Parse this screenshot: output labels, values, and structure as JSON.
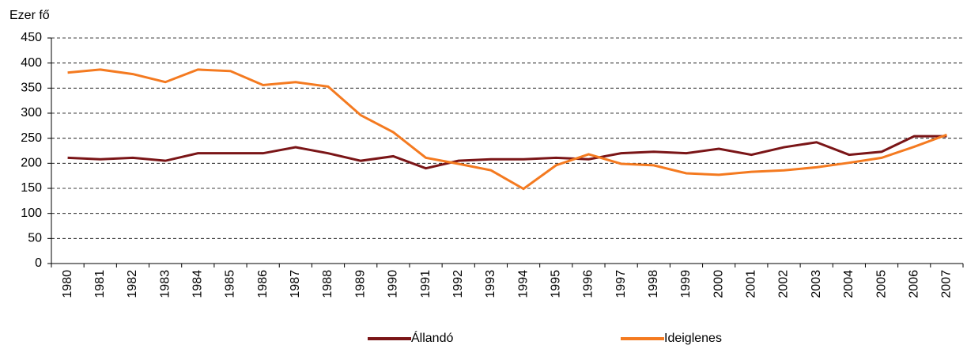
{
  "chart_data": {
    "type": "line",
    "y_label": "Ezer fő",
    "categories": [
      "1980",
      "1981",
      "1982",
      "1983",
      "1984",
      "1985",
      "1986",
      "1987",
      "1988",
      "1989",
      "1990",
      "1991",
      "1992",
      "1993",
      "1994",
      "1995",
      "1996",
      "1997",
      "1998",
      "1999",
      "2000",
      "2001",
      "2002",
      "2003",
      "2004",
      "2005",
      "2006",
      "2007"
    ],
    "series": [
      {
        "name": "Állandó",
        "color": "#7a1517",
        "values": [
          211,
          208,
          211,
          205,
          220,
          220,
          220,
          232,
          220,
          205,
          214,
          190,
          205,
          208,
          208,
          211,
          208,
          220,
          223,
          220,
          229,
          217,
          232,
          242,
          217,
          223,
          254,
          254
        ]
      },
      {
        "name": "Ideiglenes",
        "color": "#f47a20",
        "values": [
          381,
          387,
          378,
          362,
          387,
          384,
          356,
          362,
          353,
          296,
          262,
          211,
          199,
          186,
          149,
          196,
          218,
          199,
          196,
          180,
          177,
          183,
          186,
          192,
          201,
          211,
          233,
          257
        ]
      }
    ],
    "ylim": [
      0,
      450
    ],
    "yticks": [
      0,
      50,
      100,
      150,
      200,
      250,
      300,
      350,
      400,
      450
    ],
    "grid": true,
    "legend": "bottom"
  }
}
